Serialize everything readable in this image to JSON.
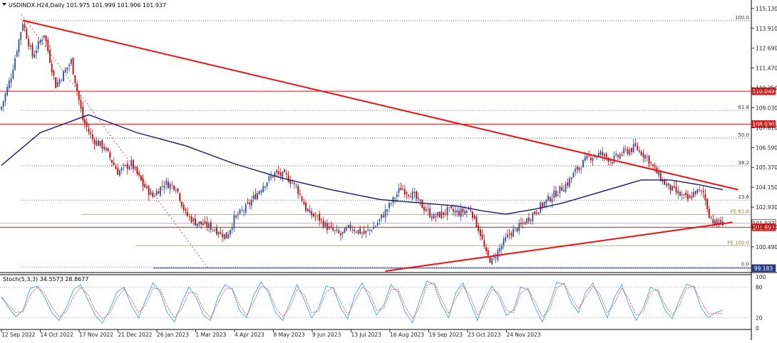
{
  "window": {
    "title": "USDINDX.H24,Daily  101.975 101.999 101.906 101.937",
    "indicator_label": "Stoch(5,3,3) 34.5573 28.8677"
  },
  "colors": {
    "background": "#ffffff",
    "bull_candle": "#2f4f9a",
    "bear_candle": "#cc0000",
    "moving_average": "#16186e",
    "trendline": "#ee1111",
    "support_line": "#ee1111",
    "fib_line": "#555555",
    "fe_line": "#b7b76a",
    "stoch_main": "#4aa3c9",
    "stoch_signal": "#d04a4a",
    "axis_text": "#222222"
  },
  "chart_data": [
    {
      "type": "candlestick",
      "symbol": "USDINDX.H24",
      "timeframe": "Daily",
      "ohlc_last": {
        "open": 101.975,
        "high": 101.999,
        "low": 101.906,
        "close": 101.937
      },
      "ylim": [
        99.0,
        115.3
      ],
      "y_ticks": [
        "115.130",
        "113.910",
        "112.690",
        "111.470",
        "110.250",
        "109.030",
        "107.810",
        "106.590",
        "105.370",
        "104.150",
        "102.930",
        "101.710",
        "100.490"
      ],
      "x_ticks": [
        "12 Sep 2022",
        "14 Oct 2022",
        "17 Nov 2022",
        "21 Dec 2022",
        "26 Jan 2023",
        "1 Mar 2023",
        "4 Apr 2023",
        "8 May 2023",
        "9 Jun 2023",
        "13 Jul 2023",
        "16 Aug 2023",
        "19 Sep 2023",
        "23 Oct 2023",
        "24 Nov 2023"
      ],
      "close_path": [
        [
          0,
          109.1
        ],
        [
          5,
          111.0
        ],
        [
          11,
          114.3
        ],
        [
          16,
          112.2
        ],
        [
          22,
          113.6
        ],
        [
          28,
          110.4
        ],
        [
          36,
          111.9
        ],
        [
          42,
          108.3
        ],
        [
          47,
          107.1
        ],
        [
          53,
          106.6
        ],
        [
          60,
          105.1
        ],
        [
          67,
          105.6
        ],
        [
          73,
          104.3
        ],
        [
          78,
          103.6
        ],
        [
          84,
          104.4
        ],
        [
          90,
          104.2
        ],
        [
          95,
          102.5
        ],
        [
          100,
          102.0
        ],
        [
          106,
          101.8
        ],
        [
          110,
          101.6
        ],
        [
          116,
          101.1
        ],
        [
          120,
          102.2
        ],
        [
          127,
          103.0
        ],
        [
          135,
          104.3
        ],
        [
          141,
          105.0
        ],
        [
          147,
          104.8
        ],
        [
          152,
          104.2
        ],
        [
          158,
          102.6
        ],
        [
          164,
          102.2
        ],
        [
          168,
          101.7
        ],
        [
          175,
          101.2
        ],
        [
          180,
          101.7
        ],
        [
          187,
          101.3
        ],
        [
          193,
          101.8
        ],
        [
          200,
          103.0
        ],
        [
          206,
          104.1
        ],
        [
          212,
          103.7
        ],
        [
          217,
          103.0
        ],
        [
          223,
          102.3
        ],
        [
          230,
          102.7
        ],
        [
          236,
          102.6
        ],
        [
          242,
          102.8
        ],
        [
          247,
          101.3
        ],
        [
          250,
          100.0
        ],
        [
          253,
          99.6
        ],
        [
          256,
          100.2
        ],
        [
          262,
          101.3
        ],
        [
          268,
          101.8
        ],
        [
          274,
          102.5
        ],
        [
          280,
          103.2
        ],
        [
          286,
          103.8
        ],
        [
          292,
          104.4
        ],
        [
          297,
          105.3
        ],
        [
          303,
          106.0
        ],
        [
          309,
          106.2
        ],
        [
          315,
          105.8
        ],
        [
          321,
          106.3
        ],
        [
          327,
          106.6
        ],
        [
          333,
          106.0
        ],
        [
          337,
          105.2
        ],
        [
          342,
          104.4
        ],
        [
          346,
          104.0
        ],
        [
          351,
          103.6
        ],
        [
          354,
          103.4
        ],
        [
          358,
          103.9
        ],
        [
          362,
          103.8
        ],
        [
          365,
          102.5
        ],
        [
          368,
          101.9
        ],
        [
          372,
          102.0
        ]
      ],
      "moving_average": {
        "name": "",
        "points": [
          [
            0,
            105.5
          ],
          [
            20,
            107.5
          ],
          [
            45,
            108.6
          ],
          [
            70,
            107.5
          ],
          [
            95,
            106.7
          ],
          [
            120,
            105.6
          ],
          [
            145,
            104.7
          ],
          [
            170,
            104.0
          ],
          [
            195,
            103.4
          ],
          [
            215,
            103.2
          ],
          [
            235,
            103.0
          ],
          [
            248,
            102.7
          ],
          [
            260,
            102.5
          ],
          [
            275,
            102.8
          ],
          [
            290,
            103.2
          ],
          [
            310,
            103.9
          ],
          [
            330,
            104.6
          ],
          [
            345,
            104.6
          ],
          [
            360,
            104.3
          ],
          [
            372,
            104.0
          ]
        ]
      },
      "horizontal_lines": [
        {
          "label": "110.049",
          "value": 110.049,
          "kind": "price-box"
        },
        {
          "label": "108.030",
          "value": 108.03,
          "kind": "price-box"
        },
        {
          "label": "101.937",
          "value": 101.937,
          "kind": "bid"
        },
        {
          "label": "101.693",
          "value": 101.693,
          "kind": "price-box"
        },
        {
          "label": "99.183",
          "value": 99.183,
          "kind": "price-box-blue"
        }
      ],
      "fib_levels": [
        {
          "label": "100.0",
          "value": 114.38
        },
        {
          "label": "61.8",
          "value": 108.87
        },
        {
          "label": "50.0",
          "value": 107.17
        },
        {
          "label": "38.2",
          "value": 105.47
        },
        {
          "label": "23.6",
          "value": 103.36
        },
        {
          "label": "0.0",
          "value": 99.25
        }
      ],
      "fe_levels": [
        {
          "label": "FE 61.8",
          "value": 102.48
        },
        {
          "label": "FE 100.0",
          "value": 100.56
        }
      ],
      "trendlines": [
        {
          "from": [
            11,
            114.4
          ],
          "to": [
            380,
            104.0
          ]
        },
        {
          "from": [
            198,
            99.0
          ],
          "to": [
            377,
            102.0
          ]
        }
      ]
    },
    {
      "type": "line",
      "title": "Stoch(5,3,3) 34.5573 28.8677",
      "ylim": [
        0,
        100
      ],
      "y_ticks": [
        "100",
        "80",
        "20",
        "0"
      ],
      "series": [
        {
          "values": [
            62,
            40,
            22,
            35,
            78,
            82,
            60,
            30,
            15,
            40,
            75,
            85,
            55,
            25,
            10,
            35,
            70,
            80,
            45,
            20,
            55,
            88,
            70,
            30,
            12,
            50,
            80,
            60,
            25,
            15,
            60,
            85,
            75,
            35,
            20,
            65,
            90,
            70,
            30,
            15,
            50,
            85,
            55,
            20,
            40,
            82,
            78,
            40,
            18,
            65,
            88,
            60,
            25,
            45,
            85,
            70,
            30,
            10,
            55,
            92,
            85,
            45,
            20,
            70,
            88,
            50,
            15,
            55,
            82,
            60,
            25,
            35,
            80,
            75,
            40,
            12,
            45,
            90,
            85,
            50,
            30,
            70,
            88,
            55,
            20,
            60,
            85,
            45,
            15,
            40,
            80,
            72,
            35,
            18,
            55,
            86,
            80,
            40,
            20,
            30,
            35
          ]
        },
        {
          "values": [
            58,
            45,
            30,
            32,
            65,
            80,
            68,
            40,
            22,
            32,
            62,
            80,
            65,
            35,
            18,
            28,
            58,
            76,
            56,
            30,
            45,
            78,
            76,
            42,
            20,
            38,
            70,
            68,
            35,
            20,
            48,
            76,
            78,
            45,
            25,
            52,
            82,
            76,
            40,
            22,
            40,
            75,
            65,
            30,
            33,
            70,
            80,
            52,
            26,
            52,
            80,
            70,
            35,
            38,
            75,
            76,
            42,
            18,
            42,
            84,
            88,
            56,
            28,
            58,
            82,
            62,
            25,
            45,
            75,
            68,
            35,
            30,
            68,
            78,
            50,
            22,
            36,
            78,
            88,
            60,
            38,
            60,
            82,
            65,
            30,
            48,
            78,
            56,
            25,
            32,
            70,
            76,
            45,
            25,
            45,
            78,
            82,
            52,
            28,
            28,
            29
          ]
        }
      ]
    }
  ]
}
